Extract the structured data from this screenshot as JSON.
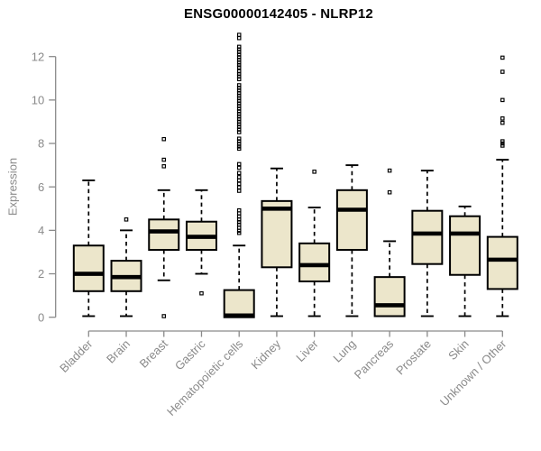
{
  "chart_data": {
    "type": "boxplot",
    "title": "ENSG00000142405 - NLRP12",
    "ylabel": "Expression",
    "xlabel": "",
    "yticks": [
      0,
      2,
      4,
      6,
      8,
      10,
      12
    ],
    "ylim": [
      0,
      13.2
    ],
    "grid": false,
    "legend": null,
    "colors": {
      "box_fill": "#ece6cb",
      "box_stroke": "#000000",
      "median": "#000000",
      "whisker": "#000000",
      "axis": "#8a8a8a",
      "tick_label": "#8a8a8a",
      "title": "#000000",
      "background": "#ffffff"
    },
    "categories": [
      "Bladder",
      "Brain",
      "Breast",
      "Gastric",
      "Hematopoietic cells",
      "Kidney",
      "Liver",
      "Lung",
      "Pancreas",
      "Prostate",
      "Skin",
      "Unknown / Other"
    ],
    "boxes": [
      {
        "category": "Bladder",
        "low": 0.05,
        "q1": 1.2,
        "median": 2.0,
        "q3": 3.3,
        "high": 6.3,
        "outliers": []
      },
      {
        "category": "Brain",
        "low": 0.05,
        "q1": 1.2,
        "median": 1.85,
        "q3": 2.6,
        "high": 4.0,
        "outliers": [
          4.5
        ]
      },
      {
        "category": "Breast",
        "low": 1.7,
        "q1": 3.1,
        "median": 3.95,
        "q3": 4.5,
        "high": 5.85,
        "outliers": [
          8.2,
          7.25,
          6.95,
          0.05
        ]
      },
      {
        "category": "Gastric",
        "low": 2.0,
        "q1": 3.1,
        "median": 3.7,
        "q3": 4.4,
        "high": 5.85,
        "outliers": [
          1.1
        ]
      },
      {
        "category": "Hematopoietic cells",
        "low": 0.0,
        "q1": 0.0,
        "median": 0.08,
        "q3": 1.25,
        "high": 3.3,
        "outliers": [
          13.0,
          12.85,
          12.45,
          12.33,
          12.21,
          12.09,
          11.97,
          11.85,
          11.73,
          11.61,
          11.5,
          11.32,
          11.2,
          11.08,
          10.96,
          10.68,
          10.56,
          10.44,
          10.32,
          10.2,
          10.08,
          9.96,
          9.84,
          9.72,
          9.6,
          9.48,
          9.36,
          9.24,
          9.12,
          9.0,
          8.88,
          8.76,
          8.64,
          8.52,
          8.22,
          8.1,
          7.98,
          7.86,
          7.76,
          7.05,
          6.88,
          6.64,
          6.45,
          6.3,
          6.14,
          5.98,
          5.82,
          4.92,
          4.78,
          4.64,
          4.5,
          4.38,
          4.26,
          4.12,
          3.98,
          3.88
        ]
      },
      {
        "category": "Kidney",
        "low": 0.05,
        "q1": 2.3,
        "median": 5.0,
        "q3": 5.35,
        "high": 6.85,
        "outliers": []
      },
      {
        "category": "Liver",
        "low": 0.05,
        "q1": 1.65,
        "median": 2.4,
        "q3": 3.4,
        "high": 5.05,
        "outliers": [
          6.7
        ]
      },
      {
        "category": "Lung",
        "low": 0.05,
        "q1": 3.1,
        "median": 4.95,
        "q3": 5.85,
        "high": 7.0,
        "outliers": []
      },
      {
        "category": "Pancreas",
        "low": 0.05,
        "q1": 0.05,
        "median": 0.55,
        "q3": 1.85,
        "high": 3.5,
        "outliers": [
          6.75,
          5.75
        ]
      },
      {
        "category": "Prostate",
        "low": 0.05,
        "q1": 2.45,
        "median": 3.85,
        "q3": 4.9,
        "high": 6.75,
        "outliers": []
      },
      {
        "category": "Skin",
        "low": 0.05,
        "q1": 1.95,
        "median": 3.85,
        "q3": 4.65,
        "high": 5.1,
        "outliers": []
      },
      {
        "category": "Unknown / Other",
        "low": 0.05,
        "q1": 1.3,
        "median": 2.65,
        "q3": 3.7,
        "high": 7.25,
        "outliers": [
          11.95,
          11.3,
          10.0,
          9.15,
          8.95,
          8.1,
          8.0,
          7.9
        ]
      }
    ]
  }
}
